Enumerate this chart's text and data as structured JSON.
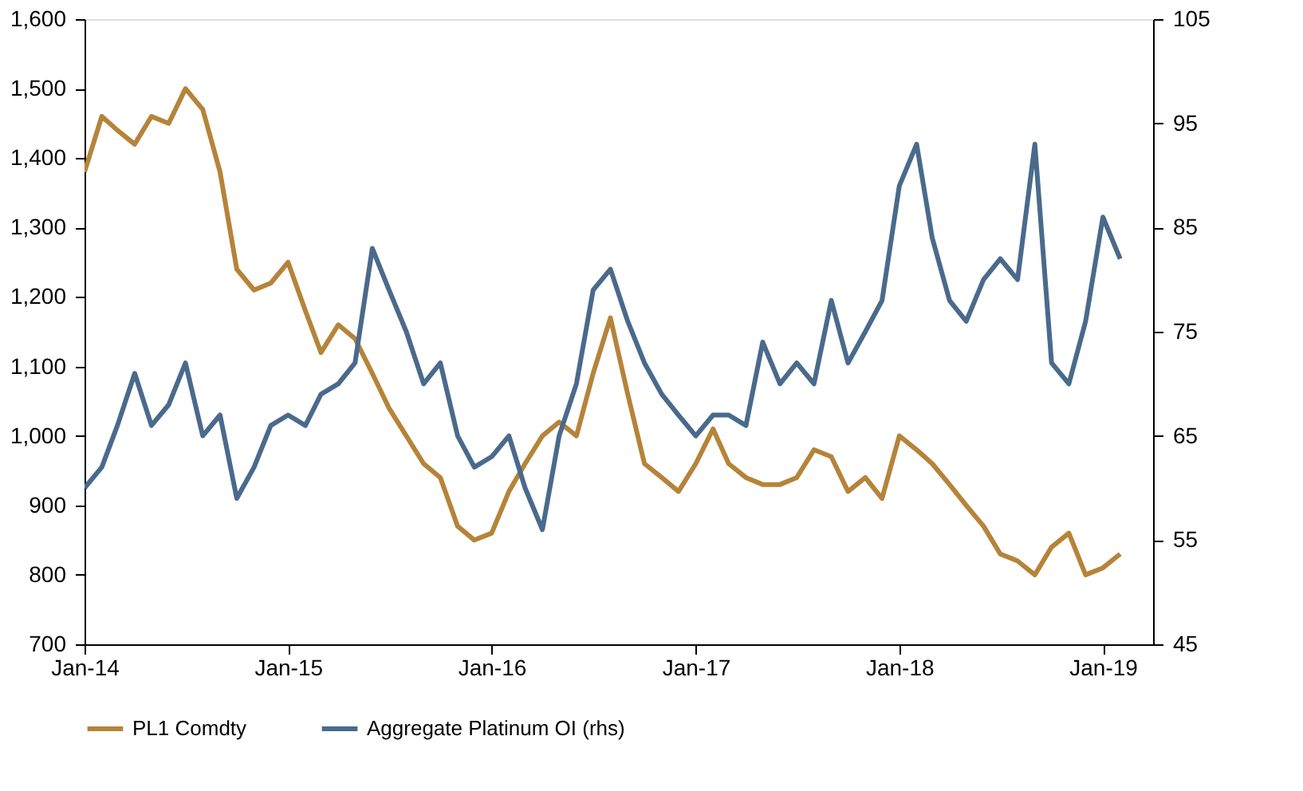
{
  "chart_data": {
    "type": "line",
    "x": [
      "2014-01",
      "2014-02",
      "2014-03",
      "2014-04",
      "2014-05",
      "2014-06",
      "2014-07",
      "2014-08",
      "2014-09",
      "2014-10",
      "2014-11",
      "2014-12",
      "2015-01",
      "2015-02",
      "2015-03",
      "2015-04",
      "2015-05",
      "2015-06",
      "2015-07",
      "2015-08",
      "2015-09",
      "2015-10",
      "2015-11",
      "2015-12",
      "2016-01",
      "2016-02",
      "2016-03",
      "2016-04",
      "2016-05",
      "2016-06",
      "2016-07",
      "2016-08",
      "2016-09",
      "2016-10",
      "2016-11",
      "2016-12",
      "2017-01",
      "2017-02",
      "2017-03",
      "2017-04",
      "2017-05",
      "2017-06",
      "2017-07",
      "2017-08",
      "2017-09",
      "2017-10",
      "2017-11",
      "2017-12",
      "2018-01",
      "2018-02",
      "2018-03",
      "2018-04",
      "2018-05",
      "2018-06",
      "2018-07",
      "2018-08",
      "2018-09",
      "2018-10",
      "2018-11",
      "2018-12",
      "2019-01",
      "2019-02"
    ],
    "series": [
      {
        "name": "PL1 Comdty",
        "color": "#b5843a",
        "values": [
          1380,
          1460,
          1440,
          1420,
          1460,
          1450,
          1500,
          1470,
          1380,
          1240,
          1210,
          1220,
          1250,
          1180,
          1120,
          1160,
          1140,
          1090,
          1040,
          1000,
          960,
          940,
          870,
          850,
          860,
          920,
          960,
          1000,
          1020,
          1000,
          1090,
          1170,
          1060,
          960,
          940,
          920,
          960,
          1010,
          960,
          940,
          930,
          930,
          940,
          980,
          970,
          920,
          940,
          910,
          1000,
          980,
          960,
          930,
          900,
          870,
          830,
          820,
          800,
          840,
          860,
          800,
          810,
          830
        ]
      },
      {
        "name": "Aggregate Platinum OI (rhs)",
        "color": "#4a6a8c",
        "axis": "y2",
        "values": [
          60,
          62,
          66,
          71,
          66,
          68,
          72,
          65,
          67,
          59,
          62,
          66,
          67,
          66,
          69,
          70,
          72,
          83,
          79,
          75,
          70,
          72,
          65,
          62,
          63,
          65,
          60,
          56,
          65,
          70,
          79,
          81,
          76,
          72,
          69,
          67,
          65,
          67,
          67,
          66,
          74,
          70,
          72,
          70,
          78,
          72,
          75,
          78,
          89,
          93,
          84,
          78,
          76,
          80,
          82,
          80,
          93,
          72,
          70,
          76,
          86,
          82
        ]
      }
    ],
    "xlim": [
      "2014-01",
      "2019-04"
    ],
    "xticks": [
      {
        "value": "2014-01",
        "label": "Jan-14"
      },
      {
        "value": "2015-01",
        "label": "Jan-15"
      },
      {
        "value": "2016-01",
        "label": "Jan-16"
      },
      {
        "value": "2017-01",
        "label": "Jan-17"
      },
      {
        "value": "2018-01",
        "label": "Jan-18"
      },
      {
        "value": "2019-01",
        "label": "Jan-19"
      }
    ],
    "ylim": [
      700,
      1600
    ],
    "yticks": [
      700,
      800,
      900,
      {
        "value": 1000,
        "label": "1,000"
      },
      {
        "value": 1100,
        "label": "1,100"
      },
      {
        "value": 1200,
        "label": "1,200"
      },
      {
        "value": 1300,
        "label": "1,300"
      },
      {
        "value": 1400,
        "label": "1,400"
      },
      {
        "value": 1500,
        "label": "1,500"
      },
      {
        "value": 1600,
        "label": "1,600"
      }
    ],
    "y2lim": [
      45,
      105
    ],
    "y2ticks": [
      45,
      55,
      65,
      75,
      85,
      95,
      105
    ],
    "grid": false,
    "legend": "bottom",
    "line_style": "solid",
    "marker": "none"
  }
}
